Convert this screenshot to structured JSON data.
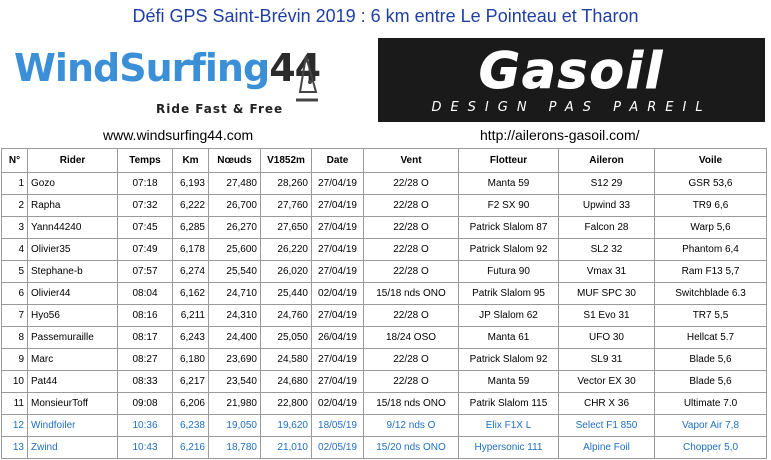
{
  "title": "Défi GPS Saint-Brévin 2019  : 6 km entre Le Pointeau et Tharon",
  "logos": {
    "left": {
      "brand_part1": "Wind",
      "brand_part2": "Surfing",
      "brand_part3": "44",
      "slogan": "Ride Fast & Free"
    },
    "right": {
      "brand": "Gasoil",
      "slogan": "DESIGN PAS PAREIL"
    }
  },
  "links": {
    "left": "www.windsurfing44.com",
    "right": "http://ailerons-gasoil.com/"
  },
  "table": {
    "headers": [
      "N°",
      "Rider",
      "Temps",
      "Km",
      "Nœuds",
      "V1852m",
      "Date",
      "Vent",
      "Flotteur",
      "Aileron",
      "Voile"
    ],
    "rows": [
      [
        "1",
        "Gozo",
        "07:18",
        "6,193",
        "27,480",
        "28,260",
        "27/04/19",
        "22/28 O",
        "Manta 59",
        "S12 29",
        "GSR 53,6"
      ],
      [
        "2",
        "Rapha",
        "07:32",
        "6,222",
        "26,700",
        "27,760",
        "27/04/19",
        "22/28 O",
        "F2 SX 90",
        "Upwind 33",
        "TR9 6,6"
      ],
      [
        "3",
        "Yann44240",
        "07:45",
        "6,285",
        "26,270",
        "27,650",
        "27/04/19",
        "22/28 O",
        "Patrick Slalom  87",
        "Falcon 28",
        "Warp 5,6"
      ],
      [
        "4",
        "Olivier35",
        "07:49",
        "6,178",
        "25,600",
        "26,220",
        "27/04/19",
        "22/28 O",
        "Patrick Slalom  92",
        "SL2 32",
        "Phantom 6,4"
      ],
      [
        "5",
        "Stephane-b",
        "07:57",
        "6,274",
        "25,540",
        "26,020",
        "27/04/19",
        "22/28 O",
        "Futura 90",
        "Vmax 31",
        "Ram F13 5,7"
      ],
      [
        "6",
        "Olivier44",
        "08:04",
        "6,162",
        "24,710",
        "25,440",
        "02/04/19",
        "15/18 nds ONO",
        "Patrik Slalom 95",
        "MUF SPC 30",
        "Switchblade 6.3"
      ],
      [
        "7",
        "Hyo56",
        "08:16",
        "6,211",
        "24,310",
        "24,760",
        "27/04/19",
        "22/28 O",
        "JP Slalom 62",
        "S1 Evo 31",
        "TR7 5,5"
      ],
      [
        "8",
        "Passemuraille",
        "08:17",
        "6,243",
        "24,400",
        "25,050",
        "26/04/19",
        "18/24 OSO",
        "Manta 61",
        "UFO 30",
        "Hellcat 5.7"
      ],
      [
        "9",
        "Marc",
        "08:27",
        "6,180",
        "23,690",
        "24,580",
        "27/04/19",
        "22/28 O",
        "Patrick Slalom  92",
        "SL9 31",
        "Blade 5,6"
      ],
      [
        "10",
        "Pat44",
        "08:33",
        "6,217",
        "23,540",
        "24,680",
        "27/04/19",
        "22/28 O",
        "Manta 59",
        "Vector EX 30",
        "Blade 5,6"
      ],
      [
        "11",
        "MonsieurToff",
        "09:08",
        "6,206",
        "21,980",
        "22,800",
        "02/04/19",
        "15/18 nds ONO",
        "Patrik Slalom 115",
        "CHR X 36",
        "Ultimate 7.0"
      ],
      [
        "12",
        "Windfoiler",
        "10:36",
        "6,238",
        "19,050",
        "19,620",
        "18/05/19",
        "9/12 nds O",
        "Elix F1X L",
        "Select F1 850",
        "Vapor Air 7,8"
      ],
      [
        "13",
        "Zwind",
        "10:43",
        "6,216",
        "18,780",
        "21,010",
        "02/05/19",
        "15/20 nds ONO",
        "Hypersonic 111",
        "Alpine Foil",
        "Chopper 5,0"
      ]
    ]
  },
  "colors": {
    "title": "#1f3fa3",
    "foil_rows": "#1f6fc0",
    "logo_blue": "#3a8fd6",
    "logo_dark": "#1a1a1a"
  }
}
